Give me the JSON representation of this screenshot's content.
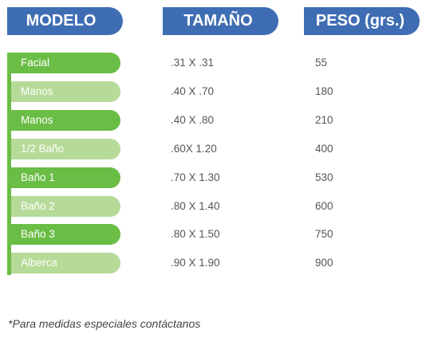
{
  "headers": {
    "model": "MODELO",
    "size": "TAMAÑO",
    "weight": "PESO (grs.)"
  },
  "rows": [
    {
      "model": "Facial",
      "size": ".31 X .31",
      "weight": "55"
    },
    {
      "model": "Manos",
      "size": ".40 X .70",
      "weight": "180"
    },
    {
      "model": "Manos",
      "size": ".40 X .80",
      "weight": "210"
    },
    {
      "model": "1/2 Baño",
      "size": ".60X 1.20",
      "weight": "400"
    },
    {
      "model": "Baño 1",
      "size": ".70 X 1.30",
      "weight": "530"
    },
    {
      "model": "Baño 2",
      "size": ".80 X 1.40",
      "weight": "600"
    },
    {
      "model": "Baño 3",
      "size": ".80 X 1.50",
      "weight": "750"
    },
    {
      "model": "Alberca",
      "size": ".90 X 1.90",
      "weight": "900"
    }
  ],
  "note": "*Para medidas especiales contáctanos",
  "colors": {
    "header_blue": "#3f6db3",
    "green_dark": "#6abd45",
    "green_light": "#b6da98"
  }
}
